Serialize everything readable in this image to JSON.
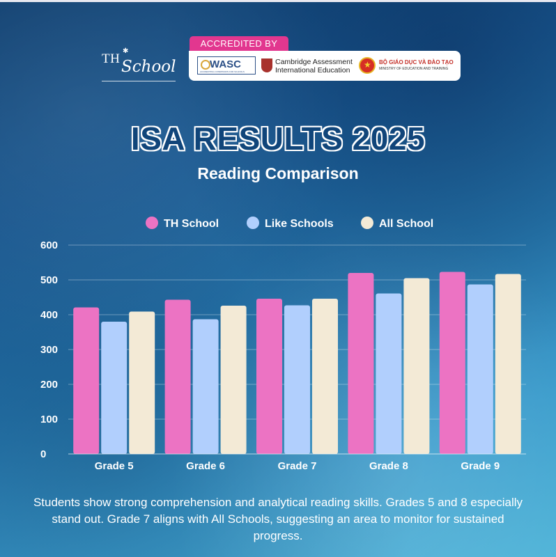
{
  "logo": {
    "text_th": "TH",
    "text_school": "School"
  },
  "accreditation": {
    "label": "ACCREDITED BY",
    "wasc": "WASC",
    "wasc_sub": "ACCREDITING COMMISSION FOR SCHOOLS",
    "cambridge_line1": "Cambridge Assessment",
    "cambridge_line2": "International Education",
    "moe_line1": "BỘ GIÁO DỤC VÀ ĐÀO TẠO",
    "moe_line2": "MINISTRY OF EDUCATION AND TRAINING"
  },
  "title": "ISA RESULTS 2025",
  "subtitle": "Reading Comparison",
  "caption": "Students show strong comprehension and analytical reading skills. Grades 5 and 8 especially stand out. Grade 7 aligns with All Schools, suggesting an area to monitor for sustained progress.",
  "colors": {
    "th_school": "#ec73c3",
    "like_schools": "#b1cffd",
    "all_school": "#f3ead6",
    "grid": "rgba(255,255,255,0.35)"
  },
  "chart_data": {
    "type": "bar",
    "categories": [
      "Grade 5",
      "Grade 6",
      "Grade 7",
      "Grade 8",
      "Grade 9"
    ],
    "series": [
      {
        "name": "TH School",
        "values": [
          421,
          443,
          446,
          520,
          523
        ]
      },
      {
        "name": "Like Schools",
        "values": [
          380,
          387,
          427,
          461,
          487
        ]
      },
      {
        "name": "All School",
        "values": [
          409,
          426,
          446,
          505,
          517
        ]
      }
    ],
    "ylim": [
      0,
      600
    ],
    "yticks": [
      0,
      100,
      200,
      300,
      400,
      500,
      600
    ],
    "grid": true,
    "legend_position": "top-center"
  }
}
